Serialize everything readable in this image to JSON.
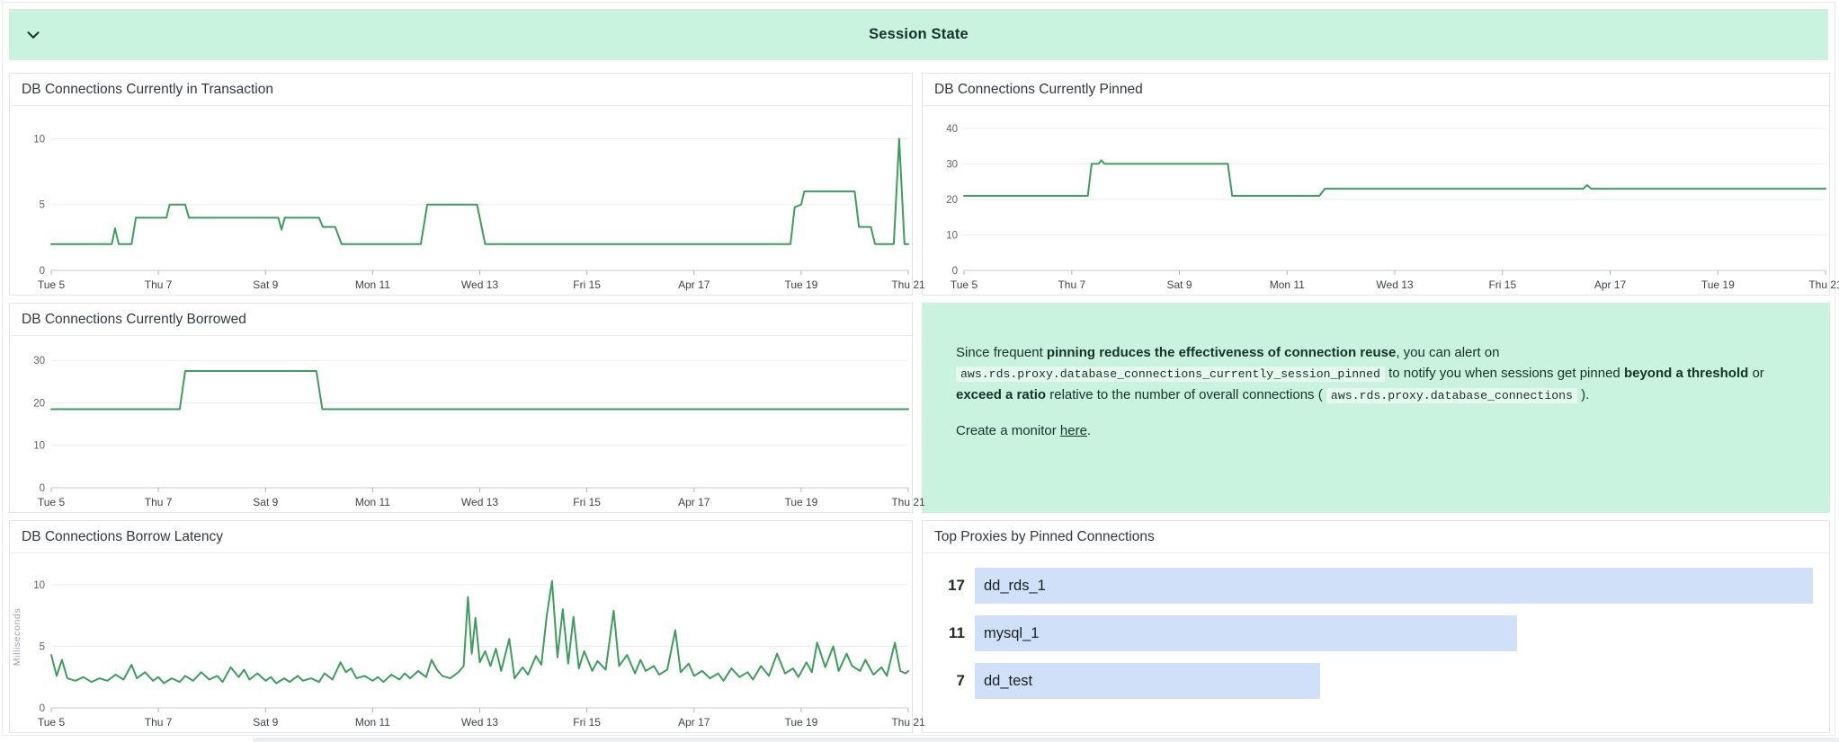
{
  "header": {
    "title": "Session State",
    "collapse_icon": "chevron-down"
  },
  "colors": {
    "mint": "#c9f2df",
    "line_green": "#3c9e5c",
    "bar_blue": "#cfe0f8",
    "panel_border": "#e4e5e7"
  },
  "note": {
    "paragraphs": [
      [
        {
          "t": "Since frequent "
        },
        {
          "t": "pinning reduces the effectiveness of connection reuse",
          "s": "b"
        },
        {
          "t": ", you can alert on "
        },
        {
          "t": "aws.rds.proxy.database_connections_currently_session_pinned",
          "s": "code"
        },
        {
          "t": " to notify you when sessions get pinned "
        },
        {
          "t": "beyond a threshold",
          "s": "b"
        },
        {
          "t": " or "
        },
        {
          "t": "exceed a ratio",
          "s": "b"
        },
        {
          "t": " relative to the number of overall connections ( "
        },
        {
          "t": "aws.rds.proxy.database_connections",
          "s": "code"
        },
        {
          "t": " )."
        }
      ],
      [
        {
          "t": "Create a monitor "
        },
        {
          "t": "here",
          "s": "link"
        },
        {
          "t": "."
        }
      ]
    ]
  },
  "toplist": {
    "title": "Top Proxies by Pinned Connections",
    "rows": [
      {
        "value": 17,
        "label": "dd_rds_1"
      },
      {
        "value": 11,
        "label": "mysql_1"
      },
      {
        "value": 7,
        "label": "dd_test"
      }
    ]
  },
  "chart_data": [
    {
      "id": "db-connections-currently-in-transaction",
      "type": "line",
      "title": "DB Connections Currently in Transaction",
      "xlabel": "",
      "ylabel": "",
      "xlim": [
        0,
        16
      ],
      "ylim": [
        0,
        11.6
      ],
      "yticks": [
        0,
        5,
        10
      ],
      "x_ticks": {
        "days": [
          0,
          2,
          4,
          6,
          8,
          10,
          12,
          14,
          16
        ],
        "labels": [
          "Tue 5",
          "Thu 7",
          "Sat 9",
          "Mon 11",
          "Wed 13",
          "Fri 15",
          "Apr 17",
          "Tue 19",
          "Thu 21"
        ]
      },
      "series": [
        {
          "name": "db_connections_currently_in_transaction",
          "color": "#3c9e5c",
          "points": [
            [
              0,
              2
            ],
            [
              1.13,
              2
            ],
            [
              1.19,
              3.2
            ],
            [
              1.26,
              2
            ],
            [
              1.5,
              2
            ],
            [
              1.58,
              4
            ],
            [
              2.15,
              4
            ],
            [
              2.21,
              5
            ],
            [
              2.5,
              5
            ],
            [
              2.57,
              4
            ],
            [
              4.24,
              4
            ],
            [
              4.3,
              3.1
            ],
            [
              4.36,
              4
            ],
            [
              5.0,
              4
            ],
            [
              5.07,
              3.3
            ],
            [
              5.3,
              3.3
            ],
            [
              5.42,
              2
            ],
            [
              6.9,
              2
            ],
            [
              7.02,
              5
            ],
            [
              7.95,
              5
            ],
            [
              8.1,
              2
            ],
            [
              13.8,
              2
            ],
            [
              13.88,
              4.8
            ],
            [
              14.0,
              5
            ],
            [
              14.06,
              6
            ],
            [
              15.0,
              6
            ],
            [
              15.08,
              3.3
            ],
            [
              15.3,
              3.3
            ],
            [
              15.38,
              2
            ],
            [
              15.73,
              2
            ],
            [
              15.83,
              10
            ],
            [
              15.93,
              2
            ],
            [
              16,
              2
            ]
          ]
        }
      ]
    },
    {
      "id": "db-connections-currently-pinned",
      "type": "line",
      "title": "DB Connections Currently Pinned",
      "xlabel": "",
      "ylabel": "",
      "xlim": [
        0,
        16
      ],
      "ylim": [
        0,
        43
      ],
      "yticks": [
        0,
        10,
        20,
        30,
        40
      ],
      "x_ticks": {
        "days": [
          0,
          2,
          4,
          6,
          8,
          10,
          12,
          14,
          16
        ],
        "labels": [
          "Tue 5",
          "Thu 7",
          "Sat 9",
          "Mon 11",
          "Wed 13",
          "Fri 15",
          "Apr 17",
          "Tue 19",
          "Thu 21"
        ]
      },
      "series": [
        {
          "name": "db_connections_currently_session_pinned",
          "color": "#3c9e5c",
          "points": [
            [
              0,
              21
            ],
            [
              2.3,
              21
            ],
            [
              2.37,
              30
            ],
            [
              2.5,
              30
            ],
            [
              2.55,
              31
            ],
            [
              2.61,
              30
            ],
            [
              4.9,
              30
            ],
            [
              4.98,
              21
            ],
            [
              6.6,
              21
            ],
            [
              6.7,
              23
            ],
            [
              11.5,
              23
            ],
            [
              11.57,
              24
            ],
            [
              11.65,
              23
            ],
            [
              16,
              23
            ]
          ]
        }
      ]
    },
    {
      "id": "db-connections-currently-borrowed",
      "type": "line",
      "title": "DB Connections Currently Borrowed",
      "xlabel": "",
      "ylabel": "",
      "xlim": [
        0,
        16
      ],
      "ylim": [
        0,
        33
      ],
      "yticks": [
        0,
        10,
        20,
        30
      ],
      "x_ticks": {
        "days": [
          0,
          2,
          4,
          6,
          8,
          10,
          12,
          14,
          16
        ],
        "labels": [
          "Tue 5",
          "Thu 7",
          "Sat 9",
          "Mon 11",
          "Wed 13",
          "Fri 15",
          "Apr 17",
          "Tue 19",
          "Thu 21"
        ]
      },
      "series": [
        {
          "name": "db_connections_currently_borrowed",
          "color": "#3c9e5c",
          "points": [
            [
              0,
              18.5
            ],
            [
              2.4,
              18.5
            ],
            [
              2.5,
              27.5
            ],
            [
              4.95,
              27.5
            ],
            [
              5.06,
              18.5
            ],
            [
              16,
              18.5
            ]
          ]
        }
      ]
    },
    {
      "id": "db-connections-borrow-latency",
      "type": "line",
      "title": "DB Connections Borrow Latency",
      "xlabel": "",
      "ylabel": "Milliseconds",
      "xlim": [
        0,
        16
      ],
      "ylim": [
        0,
        11.6
      ],
      "yticks": [
        0,
        5,
        10
      ],
      "x_ticks": {
        "days": [
          0,
          2,
          4,
          6,
          8,
          10,
          12,
          14,
          16
        ],
        "labels": [
          "Tue 5",
          "Thu 7",
          "Sat 9",
          "Mon 11",
          "Wed 13",
          "Fri 15",
          "Apr 17",
          "Tue 19",
          "Thu 21"
        ]
      },
      "series": [
        {
          "name": "db_connections_borrow_latency",
          "color": "#3c9e5c",
          "points": [
            [
              0,
              4.3
            ],
            [
              0.1,
              2.6
            ],
            [
              0.2,
              3.9
            ],
            [
              0.3,
              2.4
            ],
            [
              0.45,
              2.2
            ],
            [
              0.6,
              2.5
            ],
            [
              0.75,
              2.1
            ],
            [
              0.9,
              2.4
            ],
            [
              1.05,
              2.2
            ],
            [
              1.2,
              2.7
            ],
            [
              1.35,
              2.3
            ],
            [
              1.5,
              3.5
            ],
            [
              1.6,
              2.4
            ],
            [
              1.75,
              2.9
            ],
            [
              1.9,
              2.2
            ],
            [
              2.0,
              2.5
            ],
            [
              2.1,
              2.0
            ],
            [
              2.25,
              2.4
            ],
            [
              2.4,
              2.1
            ],
            [
              2.5,
              2.6
            ],
            [
              2.65,
              2.2
            ],
            [
              2.8,
              2.9
            ],
            [
              2.95,
              2.3
            ],
            [
              3.1,
              2.6
            ],
            [
              3.2,
              2.1
            ],
            [
              3.35,
              3.3
            ],
            [
              3.5,
              2.5
            ],
            [
              3.6,
              3.1
            ],
            [
              3.7,
              2.3
            ],
            [
              3.85,
              2.8
            ],
            [
              4.0,
              2.2
            ],
            [
              4.1,
              2.5
            ],
            [
              4.2,
              2.0
            ],
            [
              4.35,
              2.4
            ],
            [
              4.45,
              2.1
            ],
            [
              4.6,
              2.6
            ],
            [
              4.7,
              2.2
            ],
            [
              4.85,
              2.4
            ],
            [
              5.0,
              2.1
            ],
            [
              5.1,
              2.8
            ],
            [
              5.25,
              2.3
            ],
            [
              5.4,
              3.7
            ],
            [
              5.5,
              2.9
            ],
            [
              5.6,
              3.2
            ],
            [
              5.7,
              2.4
            ],
            [
              5.85,
              2.6
            ],
            [
              6.0,
              2.2
            ],
            [
              6.1,
              2.5
            ],
            [
              6.2,
              2.1
            ],
            [
              6.35,
              2.7
            ],
            [
              6.5,
              2.3
            ],
            [
              6.6,
              2.8
            ],
            [
              6.7,
              2.4
            ],
            [
              6.85,
              3.0
            ],
            [
              7.0,
              2.5
            ],
            [
              7.1,
              3.9
            ],
            [
              7.2,
              3.1
            ],
            [
              7.3,
              2.6
            ],
            [
              7.45,
              2.4
            ],
            [
              7.6,
              2.9
            ],
            [
              7.7,
              3.4
            ],
            [
              7.78,
              9.0
            ],
            [
              7.85,
              4.4
            ],
            [
              7.92,
              7.3
            ],
            [
              8.0,
              3.7
            ],
            [
              8.1,
              4.6
            ],
            [
              8.2,
              3.4
            ],
            [
              8.3,
              4.8
            ],
            [
              8.4,
              3.0
            ],
            [
              8.55,
              5.6
            ],
            [
              8.65,
              2.4
            ],
            [
              8.8,
              3.3
            ],
            [
              8.9,
              2.7
            ],
            [
              9.05,
              4.2
            ],
            [
              9.15,
              3.5
            ],
            [
              9.25,
              7.5
            ],
            [
              9.35,
              10.3
            ],
            [
              9.45,
              4.1
            ],
            [
              9.55,
              8.0
            ],
            [
              9.65,
              3.6
            ],
            [
              9.75,
              7.4
            ],
            [
              9.85,
              3.2
            ],
            [
              9.95,
              4.6
            ],
            [
              10.1,
              3.0
            ],
            [
              10.2,
              3.8
            ],
            [
              10.35,
              3.1
            ],
            [
              10.5,
              7.9
            ],
            [
              10.6,
              3.4
            ],
            [
              10.75,
              4.3
            ],
            [
              10.9,
              2.8
            ],
            [
              11.0,
              3.9
            ],
            [
              11.1,
              3.0
            ],
            [
              11.25,
              3.4
            ],
            [
              11.35,
              2.7
            ],
            [
              11.5,
              3.1
            ],
            [
              11.65,
              6.3
            ],
            [
              11.75,
              2.9
            ],
            [
              11.9,
              3.6
            ],
            [
              12.0,
              2.6
            ],
            [
              12.15,
              3.0
            ],
            [
              12.3,
              2.4
            ],
            [
              12.45,
              2.8
            ],
            [
              12.55,
              2.2
            ],
            [
              12.7,
              3.2
            ],
            [
              12.85,
              2.5
            ],
            [
              13.0,
              2.9
            ],
            [
              13.1,
              2.3
            ],
            [
              13.25,
              3.4
            ],
            [
              13.4,
              2.6
            ],
            [
              13.55,
              4.4
            ],
            [
              13.7,
              2.8
            ],
            [
              13.85,
              3.2
            ],
            [
              13.95,
              2.5
            ],
            [
              14.1,
              3.7
            ],
            [
              14.2,
              2.9
            ],
            [
              14.3,
              5.3
            ],
            [
              14.45,
              3.3
            ],
            [
              14.6,
              5.0
            ],
            [
              14.7,
              3.0
            ],
            [
              14.85,
              4.4
            ],
            [
              14.95,
              3.4
            ],
            [
              15.1,
              3.0
            ],
            [
              15.2,
              3.9
            ],
            [
              15.35,
              2.7
            ],
            [
              15.5,
              3.3
            ],
            [
              15.6,
              2.6
            ],
            [
              15.75,
              5.3
            ],
            [
              15.85,
              3.0
            ],
            [
              15.95,
              2.8
            ],
            [
              16,
              3.0
            ]
          ]
        }
      ]
    }
  ]
}
